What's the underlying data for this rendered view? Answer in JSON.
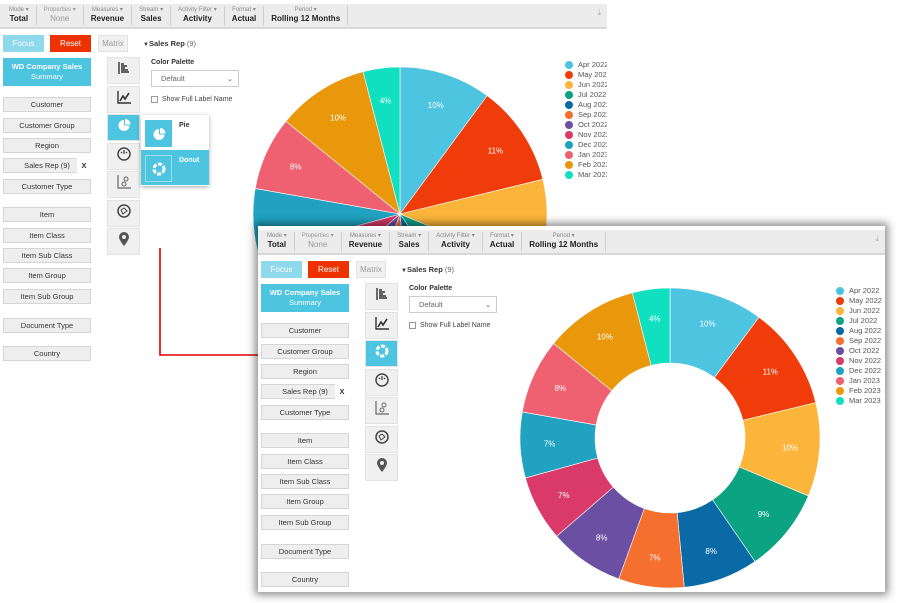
{
  "topbar": [
    {
      "label": "Mode",
      "value": "Total"
    },
    {
      "label": "Properties",
      "value": "None",
      "dim": true
    },
    {
      "label": "Measures",
      "value": "Revenue"
    },
    {
      "label": "Stream",
      "value": "Sales"
    },
    {
      "label": "Activity Filter",
      "value": "Activity"
    },
    {
      "label": "Format",
      "value": "Actual"
    },
    {
      "label": "Period",
      "value": "Rolling 12 Months"
    }
  ],
  "buttons": {
    "focus": "Focus",
    "reset": "Reset",
    "matrix": "Matrix"
  },
  "report": {
    "title": "WD Company Sales",
    "subtitle": "Summary"
  },
  "sidebar": {
    "group1": [
      "Customer",
      "Customer Group",
      "Region",
      "Sales Rep (9)",
      "Customer Type"
    ],
    "group2": [
      "Item",
      "Item Class",
      "Item Sub Class",
      "Item Group",
      "Item Sub Group"
    ],
    "group3": [
      "Document Type",
      "Country"
    ],
    "remove_label": "X"
  },
  "filter": {
    "label": "Sales Rep",
    "count": "(9)"
  },
  "chart_types": [
    "bar-chart-icon",
    "line-chart-icon",
    "pie-chart-icon",
    "gauge-icon",
    "scatter-chart-icon",
    "network-icon",
    "map-pin-icon"
  ],
  "chart_type_popup": {
    "options": [
      "Pie",
      "Donut"
    ],
    "highlighted": "Donut"
  },
  "options": {
    "color_palette_label": "Color Palette",
    "color_palette_value": "Default",
    "show_full_label": "Show Full Label Name",
    "show_full_label_checked": false
  },
  "chart_data": [
    {
      "type": "pie",
      "view": "background",
      "categories": [
        "Apr 2022",
        "May 2022",
        "Jun 2022",
        "Jul 2022",
        "Aug 2022",
        "Sep 2022",
        "Oct 2022",
        "Nov 2022",
        "Dec 2022",
        "Jan 2023",
        "Feb 2023",
        "Mar 2023"
      ],
      "values": [
        10,
        11,
        10,
        9,
        8,
        7,
        8,
        7,
        7,
        8,
        10,
        4
      ],
      "unit": "%",
      "legend": "right"
    },
    {
      "type": "donut",
      "view": "foreground",
      "categories": [
        "Apr 2022",
        "May 2022",
        "Jun 2022",
        "Jul 2022",
        "Aug 2022",
        "Sep 2022",
        "Oct 2022",
        "Nov 2022",
        "Dec 2022",
        "Jan 2023",
        "Feb 2023",
        "Mar 2023"
      ],
      "values": [
        10,
        11,
        10,
        9,
        8,
        7,
        8,
        7,
        7,
        8,
        10,
        4
      ],
      "unit": "%",
      "legend": "right"
    }
  ],
  "colors": [
    "#4dc4e0",
    "#f03c0a",
    "#fbb53a",
    "#0ca383",
    "#0a6aa6",
    "#f56f2f",
    "#6a4fa2",
    "#d93a6a",
    "#20a2c0",
    "#ef6070",
    "#e8980a",
    "#10e0c0"
  ],
  "accent": "#4dc4e0",
  "reset_color": "#ee3100",
  "arrow_color": "#e00000"
}
